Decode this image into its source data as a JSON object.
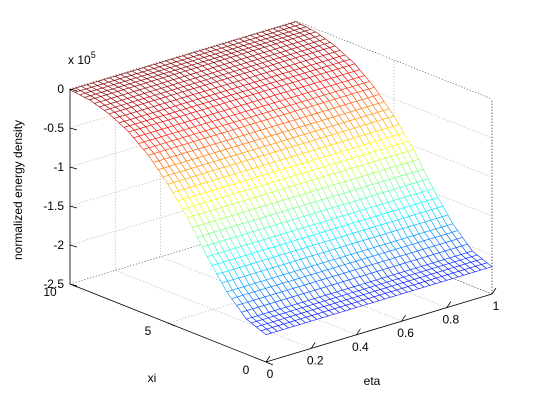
{
  "chart_data": {
    "type": "surface",
    "title": "",
    "zlabel": "normalized energy density",
    "xlabel": "eta",
    "ylabel": "xi",
    "z_multiplier": "x 10",
    "z_exponent": "5",
    "eta_ticks": [
      "0",
      "0.2",
      "0.4",
      "0.6",
      "0.8",
      "1"
    ],
    "xi_ticks": [
      "0",
      "5",
      "10"
    ],
    "z_ticks": [
      "0",
      "-0.5",
      "-1",
      "-1.5",
      "-2",
      "-2.5"
    ],
    "eta_range": [
      0,
      1
    ],
    "xi_range": [
      0,
      10
    ],
    "z_range": [
      -2.5,
      0
    ],
    "z_unit_scale": 100000,
    "xi_profile": [
      0,
      1,
      2,
      3,
      4,
      5,
      6,
      7,
      8,
      9,
      10
    ],
    "z_profile": [
      -2.15,
      -2.05,
      -1.8,
      -1.45,
      -1.05,
      -0.72,
      -0.45,
      -0.25,
      -0.12,
      -0.04,
      -0.01
    ],
    "surface_depends_on": "xi",
    "grid": true,
    "colormap": [
      "#0000bf",
      "#0000ff",
      "#0080ff",
      "#00ffff",
      "#80ff80",
      "#ffff00",
      "#ff8000",
      "#ff0000",
      "#800000"
    ]
  }
}
